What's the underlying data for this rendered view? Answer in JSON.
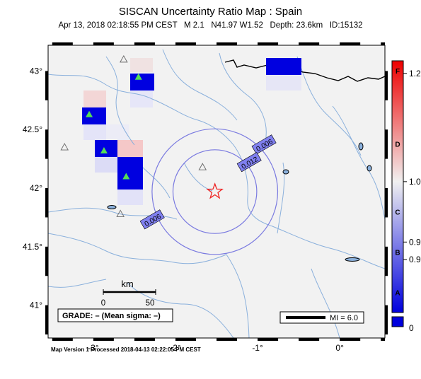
{
  "title": "SISCAN Uncertainty Ratio Map : Spain",
  "subtitle": {
    "datetime": "Apr 13, 2018 02:18:55 PM CEST",
    "magnitude": "M 2.1",
    "location": "N41.97 W1.52",
    "depth": "Depth: 23.6km",
    "id": "ID:15132"
  },
  "axes": {
    "lon_ticks": [
      {
        "value": -3,
        "label": "-3°"
      },
      {
        "value": -2,
        "label": "-2°"
      },
      {
        "value": -1,
        "label": "-1°"
      },
      {
        "value": 0,
        "label": "0°"
      }
    ],
    "lat_ticks": [
      {
        "value": 43,
        "label": "43°"
      },
      {
        "value": 42.5,
        "label": "42.5°"
      },
      {
        "value": 42,
        "label": "42°"
      },
      {
        "value": 41.5,
        "label": "41.5°"
      },
      {
        "value": 41,
        "label": "41°"
      }
    ],
    "lon_range": [
      -3.55,
      0.55
    ],
    "lat_range": [
      40.72,
      43.22
    ]
  },
  "epicenter": {
    "lon": -1.52,
    "lat": 41.97
  },
  "contours": [
    {
      "label": "0.006",
      "radius_km": 60
    },
    {
      "label": "0.012",
      "radius_km": 40
    }
  ],
  "contour_labels": [
    {
      "text": "0.006",
      "lon": -0.92,
      "lat": 42.37
    },
    {
      "text": "0.012",
      "lon": -1.1,
      "lat": 42.22
    },
    {
      "text": "0.006",
      "lon": -2.28,
      "lat": 41.73
    }
  ],
  "stations": [
    {
      "lon": -2.45,
      "lat": 42.95,
      "active": true
    },
    {
      "lon": -3.05,
      "lat": 42.63,
      "active": true
    },
    {
      "lon": -2.87,
      "lat": 42.32,
      "active": true
    },
    {
      "lon": -2.6,
      "lat": 42.1,
      "active": true
    },
    {
      "lon": -2.63,
      "lat": 43.1,
      "active": false
    },
    {
      "lon": -3.35,
      "lat": 42.35,
      "active": false
    },
    {
      "lon": -2.67,
      "lat": 41.78,
      "active": false
    },
    {
      "lon": -1.67,
      "lat": 42.18,
      "active": false
    }
  ],
  "scale_bar": {
    "title": "km",
    "labels": [
      "0",
      "50"
    ]
  },
  "grade_box": "GRADE: – (Mean sigma: –)",
  "mi_legend": "MI = 6.0",
  "colorbar": {
    "ticks": [
      {
        "value": "1.2",
        "pos": 0.05
      },
      {
        "value": "1.0",
        "pos": 0.48
      },
      {
        "value": "0.9",
        "pos": 0.72
      },
      {
        "value": "0.9",
        "pos": 0.79
      }
    ],
    "grades": [
      {
        "label": "F",
        "pos": 0.04
      },
      {
        "label": "D",
        "pos": 0.33
      },
      {
        "label": "C",
        "pos": 0.6
      },
      {
        "label": "B",
        "pos": 0.76
      },
      {
        "label": "A",
        "pos": 0.92
      }
    ],
    "bottom_label": "0",
    "colors": {
      "high": "#ee0000",
      "mid": "#f0f0f0",
      "low": "#0000dd"
    }
  },
  "footer": "Map Version 1 Processed 2018-04-13 02:22:05 PM CEST",
  "colors": {
    "background": "#f2f2f2",
    "river": "#8ab0dc",
    "contour": "#7a7ae0",
    "cell_blue": "#0000e0",
    "cell_red": "#ff9a9a",
    "epicenter": "#ee2222",
    "station_active": "#55dd55"
  }
}
